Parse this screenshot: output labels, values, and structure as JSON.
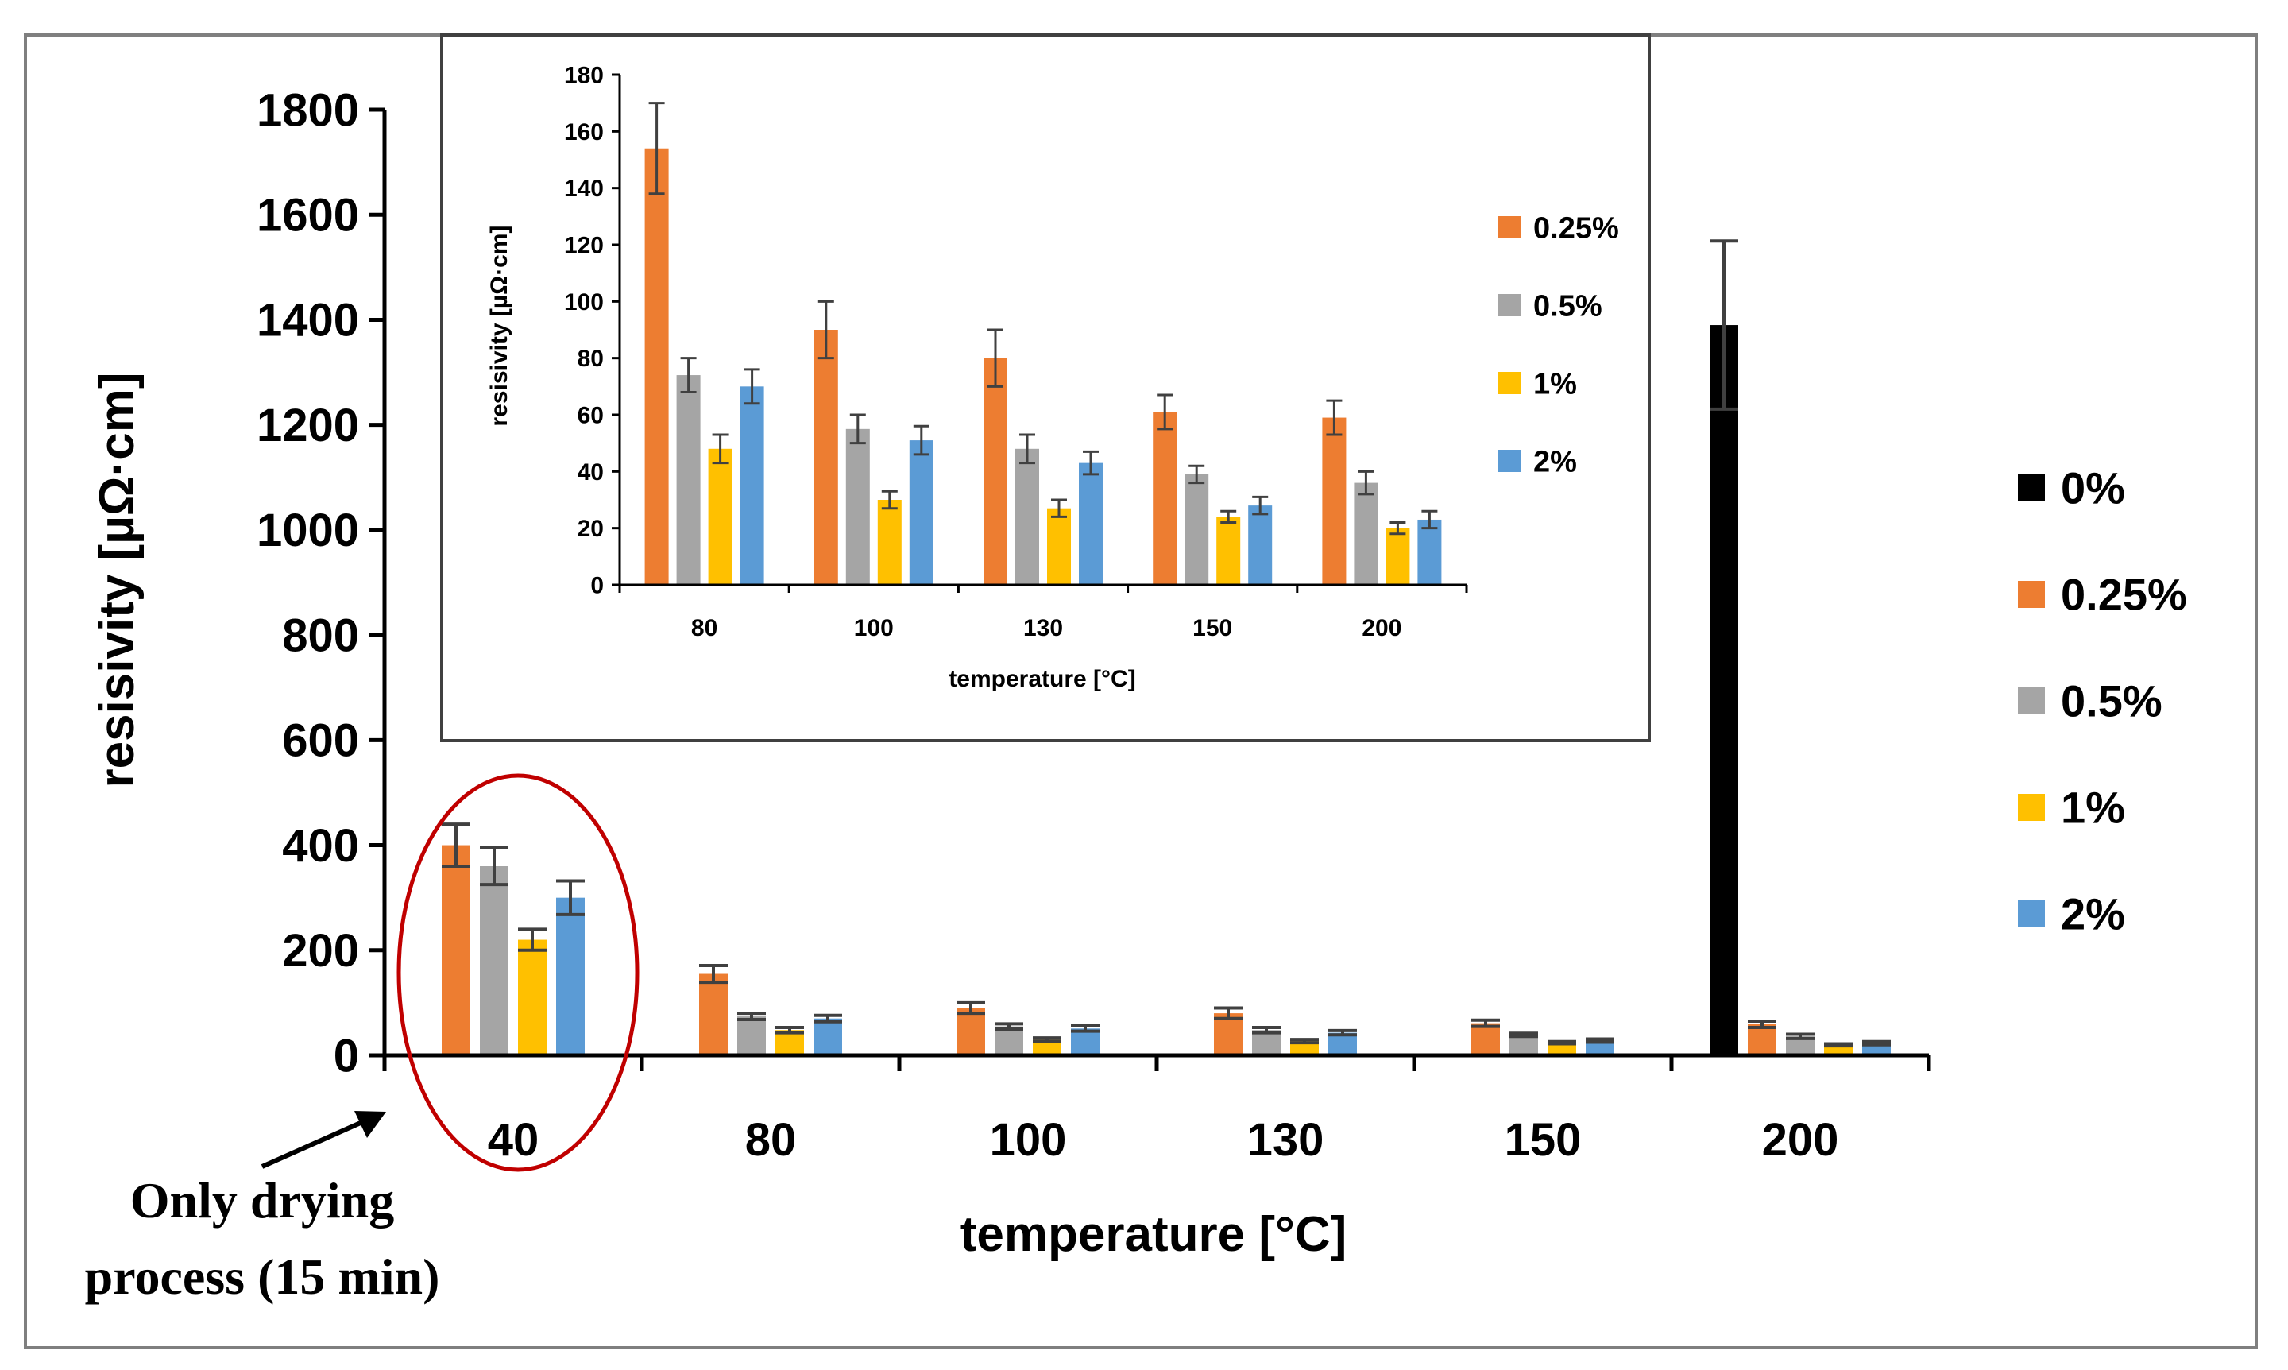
{
  "colors": {
    "0%": "#000000",
    "0.25%": "#ED7D31",
    "0.5%": "#A5A5A5",
    "1%": "#FFC000",
    "2%": "#5B9BD5",
    "errorbar": "#404040",
    "annotation_circle": "#C00000"
  },
  "annotation": {
    "line1": "Only drying",
    "line2": "process (15 min)"
  },
  "chart_data": [
    {
      "type": "bar",
      "title": "",
      "xlabel": "temperature [°C]",
      "ylabel": "resisivity [µΩ·cm]",
      "ylim": [
        0,
        1800
      ],
      "yticks": [
        "0",
        "200",
        "400",
        "600",
        "800",
        "1000",
        "1200",
        "1400",
        "1600",
        "1800"
      ],
      "grid": false,
      "legend_position": "right",
      "categories": [
        "40",
        "80",
        "100",
        "130",
        "150",
        "200"
      ],
      "series": [
        {
          "name": "0%",
          "values": [
            null,
            null,
            null,
            null,
            null,
            1390
          ],
          "errors": [
            null,
            null,
            null,
            null,
            null,
            160
          ]
        },
        {
          "name": "0.25%",
          "values": [
            400,
            155,
            90,
            80,
            61,
            59
          ],
          "errors": [
            40,
            16,
            10,
            10,
            6,
            6
          ]
        },
        {
          "name": "0.5%",
          "values": [
            360,
            74,
            55,
            48,
            39,
            36
          ],
          "errors": [
            35,
            6,
            5,
            5,
            3,
            4
          ]
        },
        {
          "name": "1%",
          "values": [
            220,
            48,
            30,
            27,
            24,
            20
          ],
          "errors": [
            20,
            5,
            3,
            3,
            2,
            2
          ]
        },
        {
          "name": "2%",
          "values": [
            300,
            70,
            51,
            43,
            28,
            23
          ],
          "errors": [
            32,
            6,
            5,
            4,
            3,
            3
          ]
        }
      ]
    },
    {
      "type": "bar",
      "title": "",
      "xlabel": "temperature [°C]",
      "ylabel": "resisivity [µΩ·cm]",
      "ylim": [
        0,
        180
      ],
      "yticks": [
        "0",
        "20",
        "40",
        "60",
        "80",
        "100",
        "120",
        "140",
        "160",
        "180"
      ],
      "grid": false,
      "legend_position": "right",
      "categories": [
        "80",
        "100",
        "130",
        "150",
        "200"
      ],
      "series": [
        {
          "name": "0.25%",
          "values": [
            154,
            90,
            80,
            61,
            59
          ],
          "errors": [
            16,
            10,
            10,
            6,
            6
          ]
        },
        {
          "name": "0.5%",
          "values": [
            74,
            55,
            48,
            39,
            36
          ],
          "errors": [
            6,
            5,
            5,
            3,
            4
          ]
        },
        {
          "name": "1%",
          "values": [
            48,
            30,
            27,
            24,
            20
          ],
          "errors": [
            5,
            3,
            3,
            2,
            2
          ]
        },
        {
          "name": "2%",
          "values": [
            70,
            51,
            43,
            28,
            23
          ],
          "errors": [
            6,
            5,
            4,
            3,
            3
          ]
        }
      ]
    }
  ]
}
